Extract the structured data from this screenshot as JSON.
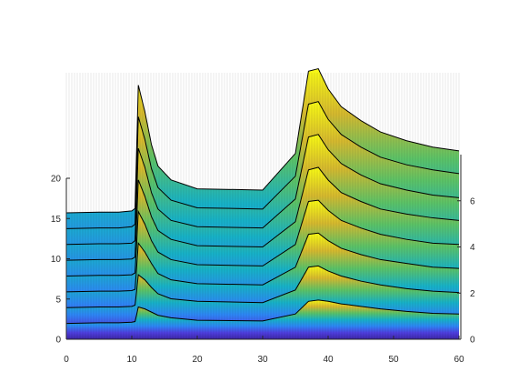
{
  "chart_data": {
    "type": "waterfall",
    "title": "",
    "xlabel": "",
    "ylabel": "",
    "xlim": [
      0,
      60
    ],
    "ylim_left": [
      0,
      20
    ],
    "ylim_right": [
      0,
      8
    ],
    "x_ticks": [
      0,
      10,
      20,
      30,
      40,
      50,
      60
    ],
    "x_tick_labels": [
      "0",
      "10",
      "20",
      "30",
      "40",
      "50",
      "60"
    ],
    "y_left_ticks": [
      0,
      5,
      10,
      15,
      20
    ],
    "y_left_tick_labels": [
      "0",
      "5",
      "10",
      "15",
      "20"
    ],
    "y_right_ticks": [
      0,
      2,
      4,
      6
    ],
    "y_right_tick_labels": [
      "0",
      "2",
      "4",
      "6"
    ],
    "grid": false,
    "colormap": [
      "#3e26a8",
      "#4f3fe0",
      "#2e87f7",
      "#17b3c9",
      "#5cc468",
      "#d7ba2f",
      "#f9fb15"
    ],
    "baseline_color": "#2f2a8f",
    "series": [
      {
        "offset": 1.25,
        "values": [
          1.25,
          1.3,
          1.3,
          1.35,
          1.4,
          2.55,
          2.4,
          2.15,
          1.9,
          1.7,
          1.5,
          1.45,
          2.0,
          3.0,
          3.1,
          3.0,
          2.8,
          2.6,
          2.4,
          2.2,
          2.05,
          2.0
        ]
      },
      {
        "offset": 2.5,
        "values": [
          2.5,
          2.55,
          2.55,
          2.6,
          2.7,
          5.1,
          4.7,
          4.1,
          3.6,
          3.2,
          3.0,
          2.9,
          3.9,
          5.7,
          5.8,
          5.4,
          5.0,
          4.6,
          4.3,
          4.0,
          3.8,
          3.7
        ]
      },
      {
        "offset": 3.75,
        "values": [
          3.75,
          3.8,
          3.8,
          3.85,
          3.95,
          7.6,
          6.9,
          6.0,
          5.2,
          4.7,
          4.4,
          4.3,
          5.7,
          8.3,
          8.4,
          7.8,
          7.2,
          6.7,
          6.3,
          6.0,
          5.7,
          5.6
        ]
      },
      {
        "offset": 5.0,
        "values": [
          5.0,
          5.05,
          5.05,
          5.1,
          5.25,
          10.1,
          9.1,
          7.8,
          6.9,
          6.3,
          5.9,
          5.8,
          7.5,
          10.9,
          11.0,
          10.2,
          9.4,
          8.8,
          8.3,
          7.9,
          7.6,
          7.5
        ]
      },
      {
        "offset": 6.25,
        "values": [
          6.25,
          6.3,
          6.3,
          6.35,
          6.5,
          12.6,
          11.3,
          9.7,
          8.6,
          7.9,
          7.4,
          7.3,
          9.3,
          13.4,
          13.6,
          12.6,
          11.6,
          10.9,
          10.3,
          9.9,
          9.6,
          9.4
        ]
      },
      {
        "offset": 7.5,
        "values": [
          7.5,
          7.55,
          7.55,
          7.6,
          7.8,
          15.1,
          13.6,
          11.6,
          10.3,
          9.4,
          8.9,
          8.8,
          11.1,
          16.0,
          16.2,
          15.0,
          13.9,
          13.0,
          12.3,
          11.8,
          11.4,
          11.2
        ]
      },
      {
        "offset": 8.75,
        "values": [
          8.75,
          8.8,
          8.8,
          8.9,
          9.1,
          17.6,
          15.8,
          13.5,
          12.0,
          11.0,
          10.4,
          10.3,
          12.9,
          18.6,
          18.8,
          17.4,
          16.2,
          15.2,
          14.4,
          13.8,
          13.4,
          13.1
        ]
      },
      {
        "offset": 10.0,
        "values": [
          10.0,
          10.05,
          10.05,
          10.15,
          10.35,
          20.1,
          18.0,
          15.4,
          13.7,
          12.6,
          11.9,
          11.8,
          14.7,
          21.2,
          21.4,
          19.8,
          18.4,
          17.3,
          16.4,
          15.7,
          15.2,
          14.9
        ]
      }
    ],
    "x_samples": [
      0,
      5,
      8,
      10,
      10.5,
      11,
      12,
      13,
      14,
      16,
      20,
      30,
      35,
      37,
      38.5,
      40,
      42,
      45,
      48,
      52,
      56,
      60
    ]
  }
}
